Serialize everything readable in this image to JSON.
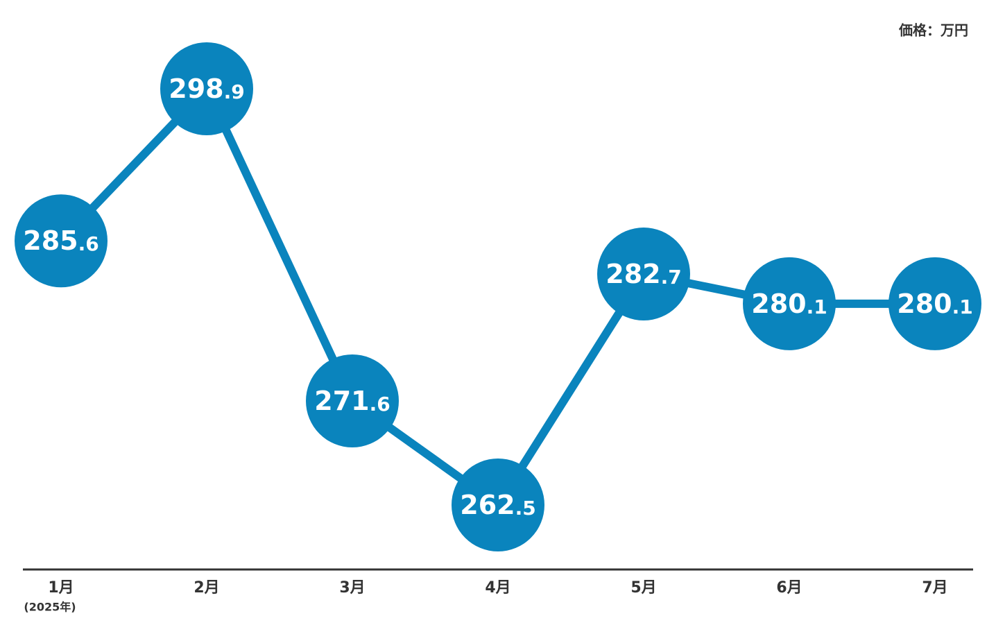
{
  "chart_data": {
    "type": "line",
    "unit_label": "価格：万円",
    "categories": [
      "1月",
      "2月",
      "3月",
      "4月",
      "5月",
      "6月",
      "7月"
    ],
    "x_note": "(2025年)",
    "values": [
      285.6,
      298.9,
      271.6,
      262.5,
      282.7,
      280.1,
      280.1
    ],
    "color": "#0a84bd"
  }
}
